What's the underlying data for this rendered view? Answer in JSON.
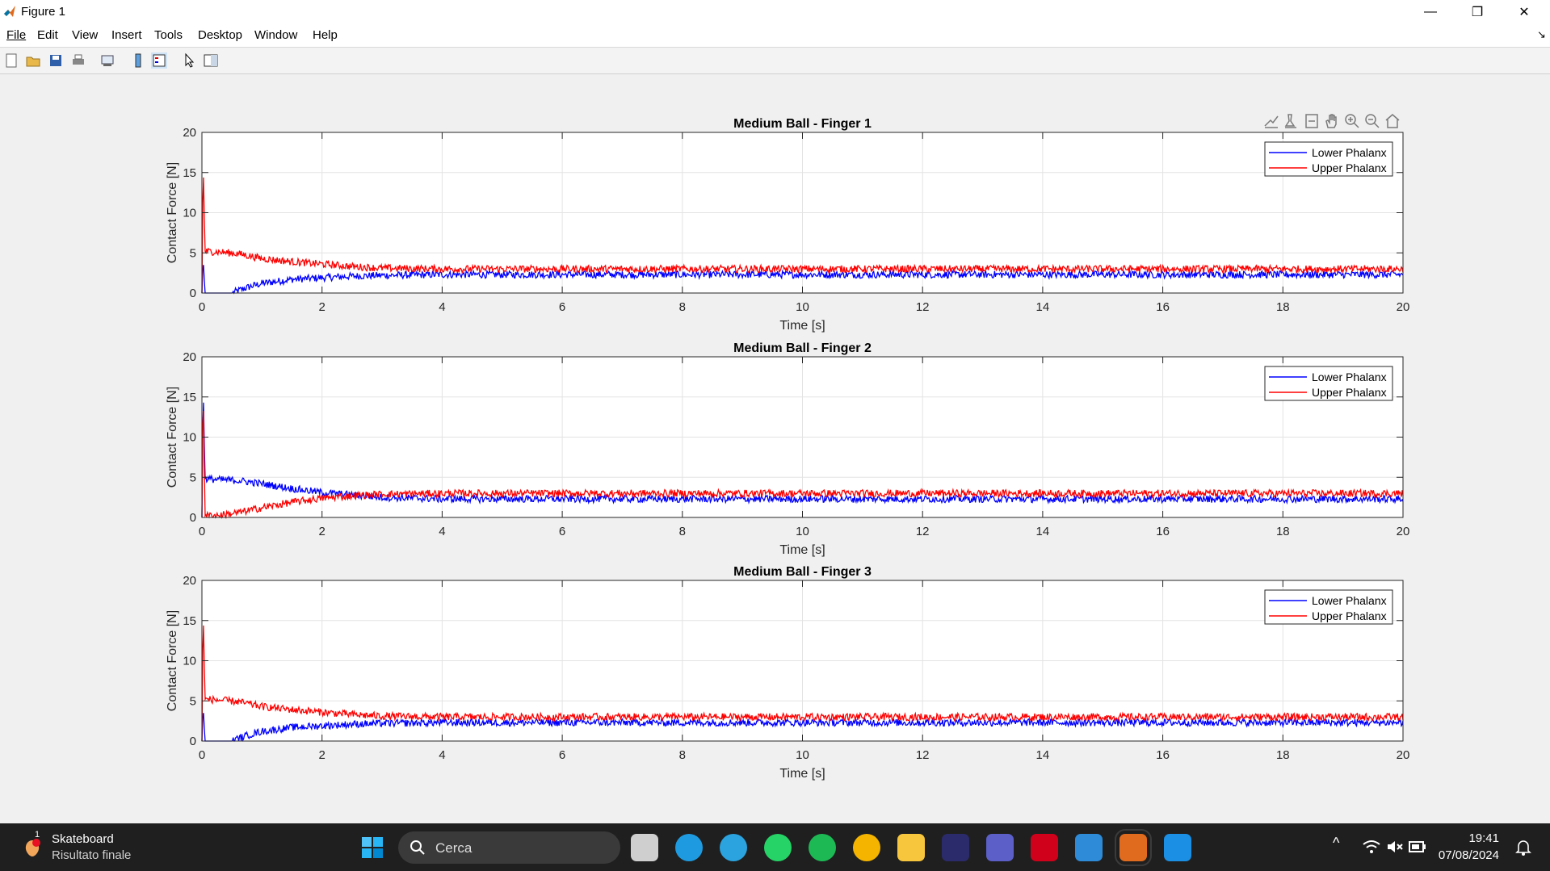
{
  "window": {
    "title": "Figure 1",
    "minimize_glyph": "—",
    "maximize_glyph": "❐",
    "close_glyph": "✕",
    "dock_glyph": "↘"
  },
  "menu": [
    "File",
    "Edit",
    "View",
    "Insert",
    "Tools",
    "Desktop",
    "Window",
    "Help"
  ],
  "toolbar_icons": [
    "new-figure-icon",
    "open-file-icon",
    "save-icon",
    "print-icon",
    "print-preview-icon",
    "colorbar-icon",
    "legend-icon",
    "edit-plot-icon",
    "property-editor-icon"
  ],
  "axes_toolbar_icons": [
    "brush-icon",
    "data-tips-icon",
    "restore-view-icon",
    "pan-hand-icon",
    "zoom-in-icon",
    "zoom-out-icon",
    "home-icon"
  ],
  "chart_data": [
    {
      "type": "line",
      "title": "Medium Ball - Finger 1",
      "xlabel": "Time [s]",
      "ylabel": "Contact Force [N]",
      "xlim": [
        0,
        20
      ],
      "ylim": [
        0,
        20
      ],
      "xticks": [
        0,
        2,
        4,
        6,
        8,
        10,
        12,
        14,
        16,
        18,
        20
      ],
      "yticks": [
        0,
        5,
        10,
        15,
        20
      ],
      "grid": true,
      "legend_position": "top-right",
      "series": [
        {
          "name": "Lower Phalanx",
          "color": "#0000ff",
          "x": [
            0,
            0.02,
            0.05,
            0.5,
            0.6,
            0.8,
            1,
            1.5,
            2,
            2.5,
            3,
            4,
            6,
            8,
            10,
            12,
            14,
            16,
            18,
            20
          ],
          "y": [
            0,
            4.5,
            0,
            0,
            0.3,
            0.8,
            1.2,
            1.7,
            1.9,
            2.1,
            2.2,
            2.3,
            2.3,
            2.3,
            2.3,
            2.3,
            2.3,
            2.3,
            2.3,
            2.3
          ],
          "noise": 0.45
        },
        {
          "name": "Upper Phalanx",
          "color": "#ff0000",
          "x": [
            0,
            0.02,
            0.05,
            0.3,
            0.6,
            1,
            1.5,
            2,
            2.5,
            3,
            4,
            6,
            8,
            10,
            12,
            14,
            16,
            18,
            20
          ],
          "y": [
            0,
            17,
            5.2,
            5.1,
            4.9,
            4.3,
            3.9,
            3.6,
            3.3,
            3.1,
            3.0,
            3.0,
            3.0,
            3.0,
            3.0,
            3.0,
            3.0,
            3.0,
            3.0
          ],
          "noise": 0.45
        }
      ]
    },
    {
      "type": "line",
      "title": "Medium Ball - Finger 2",
      "xlabel": "Time [s]",
      "ylabel": "Contact Force [N]",
      "xlim": [
        0,
        20
      ],
      "ylim": [
        0,
        20
      ],
      "xticks": [
        0,
        2,
        4,
        6,
        8,
        10,
        12,
        14,
        16,
        18,
        20
      ],
      "yticks": [
        0,
        5,
        10,
        15,
        20
      ],
      "grid": true,
      "legend_position": "top-right",
      "series": [
        {
          "name": "Lower Phalanx",
          "color": "#0000ff",
          "x": [
            0,
            0.02,
            0.05,
            0.3,
            0.6,
            1,
            1.5,
            2,
            2.5,
            3,
            4,
            6,
            8,
            10,
            12,
            14,
            16,
            18,
            20
          ],
          "y": [
            0,
            17,
            4.8,
            4.7,
            4.6,
            4.2,
            3.6,
            3.1,
            2.8,
            2.5,
            2.3,
            2.3,
            2.3,
            2.3,
            2.3,
            2.3,
            2.3,
            2.3,
            2.3
          ],
          "noise": 0.45
        },
        {
          "name": "Upper Phalanx",
          "color": "#ff0000",
          "x": [
            0,
            0.02,
            0.05,
            0.3,
            0.6,
            1,
            1.5,
            2,
            2.5,
            3,
            4,
            6,
            8,
            10,
            12,
            14,
            16,
            18,
            20
          ],
          "y": [
            0,
            17,
            0.2,
            0.3,
            0.6,
            1.2,
            1.9,
            2.4,
            2.7,
            2.9,
            3.0,
            3.0,
            3.0,
            3.0,
            3.0,
            3.0,
            3.0,
            3.0,
            3.0
          ],
          "noise": 0.45
        }
      ]
    },
    {
      "type": "line",
      "title": "Medium Ball - Finger 3",
      "xlabel": "Time [s]",
      "ylabel": "Contact Force [N]",
      "xlim": [
        0,
        20
      ],
      "ylim": [
        0,
        20
      ],
      "xticks": [
        0,
        2,
        4,
        6,
        8,
        10,
        12,
        14,
        16,
        18,
        20
      ],
      "yticks": [
        0,
        5,
        10,
        15,
        20
      ],
      "grid": true,
      "legend_position": "top-right",
      "series": [
        {
          "name": "Lower Phalanx",
          "color": "#0000ff",
          "x": [
            0,
            0.02,
            0.05,
            0.5,
            0.6,
            0.8,
            1,
            1.5,
            2,
            2.5,
            3,
            4,
            6,
            8,
            10,
            12,
            14,
            16,
            18,
            20
          ],
          "y": [
            0,
            4.5,
            0,
            0,
            0.3,
            0.8,
            1.2,
            1.7,
            1.9,
            2.1,
            2.2,
            2.3,
            2.3,
            2.3,
            2.3,
            2.3,
            2.3,
            2.3,
            2.3,
            2.3
          ],
          "noise": 0.45
        },
        {
          "name": "Upper Phalanx",
          "color": "#ff0000",
          "x": [
            0,
            0.02,
            0.05,
            0.3,
            0.6,
            1,
            1.5,
            2,
            2.5,
            3,
            4,
            6,
            8,
            10,
            12,
            14,
            16,
            18,
            20
          ],
          "y": [
            0,
            17,
            5.2,
            5.1,
            4.9,
            4.3,
            3.9,
            3.6,
            3.3,
            3.1,
            3.0,
            3.0,
            3.0,
            3.0,
            3.0,
            3.0,
            3.0,
            3.0,
            3.0
          ],
          "noise": 0.45
        }
      ]
    }
  ],
  "taskbar": {
    "notification_title": "Skateboard",
    "notification_subtitle": "Risultato finale",
    "notification_badge": "1",
    "search_placeholder": "Cerca",
    "apps": [
      "start-icon",
      "task-view-icon",
      "edge-icon",
      "telegram-icon",
      "whatsapp-icon",
      "spotify-icon",
      "chrome-icon",
      "file-explorer-icon",
      "latex-icon",
      "teams-icon",
      "solidworks-icon",
      "notepad-icon",
      "matlab-icon",
      "photos-icon"
    ],
    "app_colors": [
      "#2b88d8",
      "#cfcfcf",
      "#1e9be0",
      "#2aa3df",
      "#25d366",
      "#1db954",
      "#f4b400",
      "#f8c63d",
      "#2b2b6b",
      "#5b5fc7",
      "#d0021b",
      "#2e8bd8",
      "#e06b1e",
      "#1a8fe3"
    ],
    "clock_time": "19:41",
    "clock_date": "07/08/2024",
    "tray_chevron": "^",
    "tray_wifi": "wifi-icon",
    "tray_volume": "volume-muted-icon",
    "tray_battery": "battery-icon",
    "tray_bell": "notification-bell-icon"
  }
}
